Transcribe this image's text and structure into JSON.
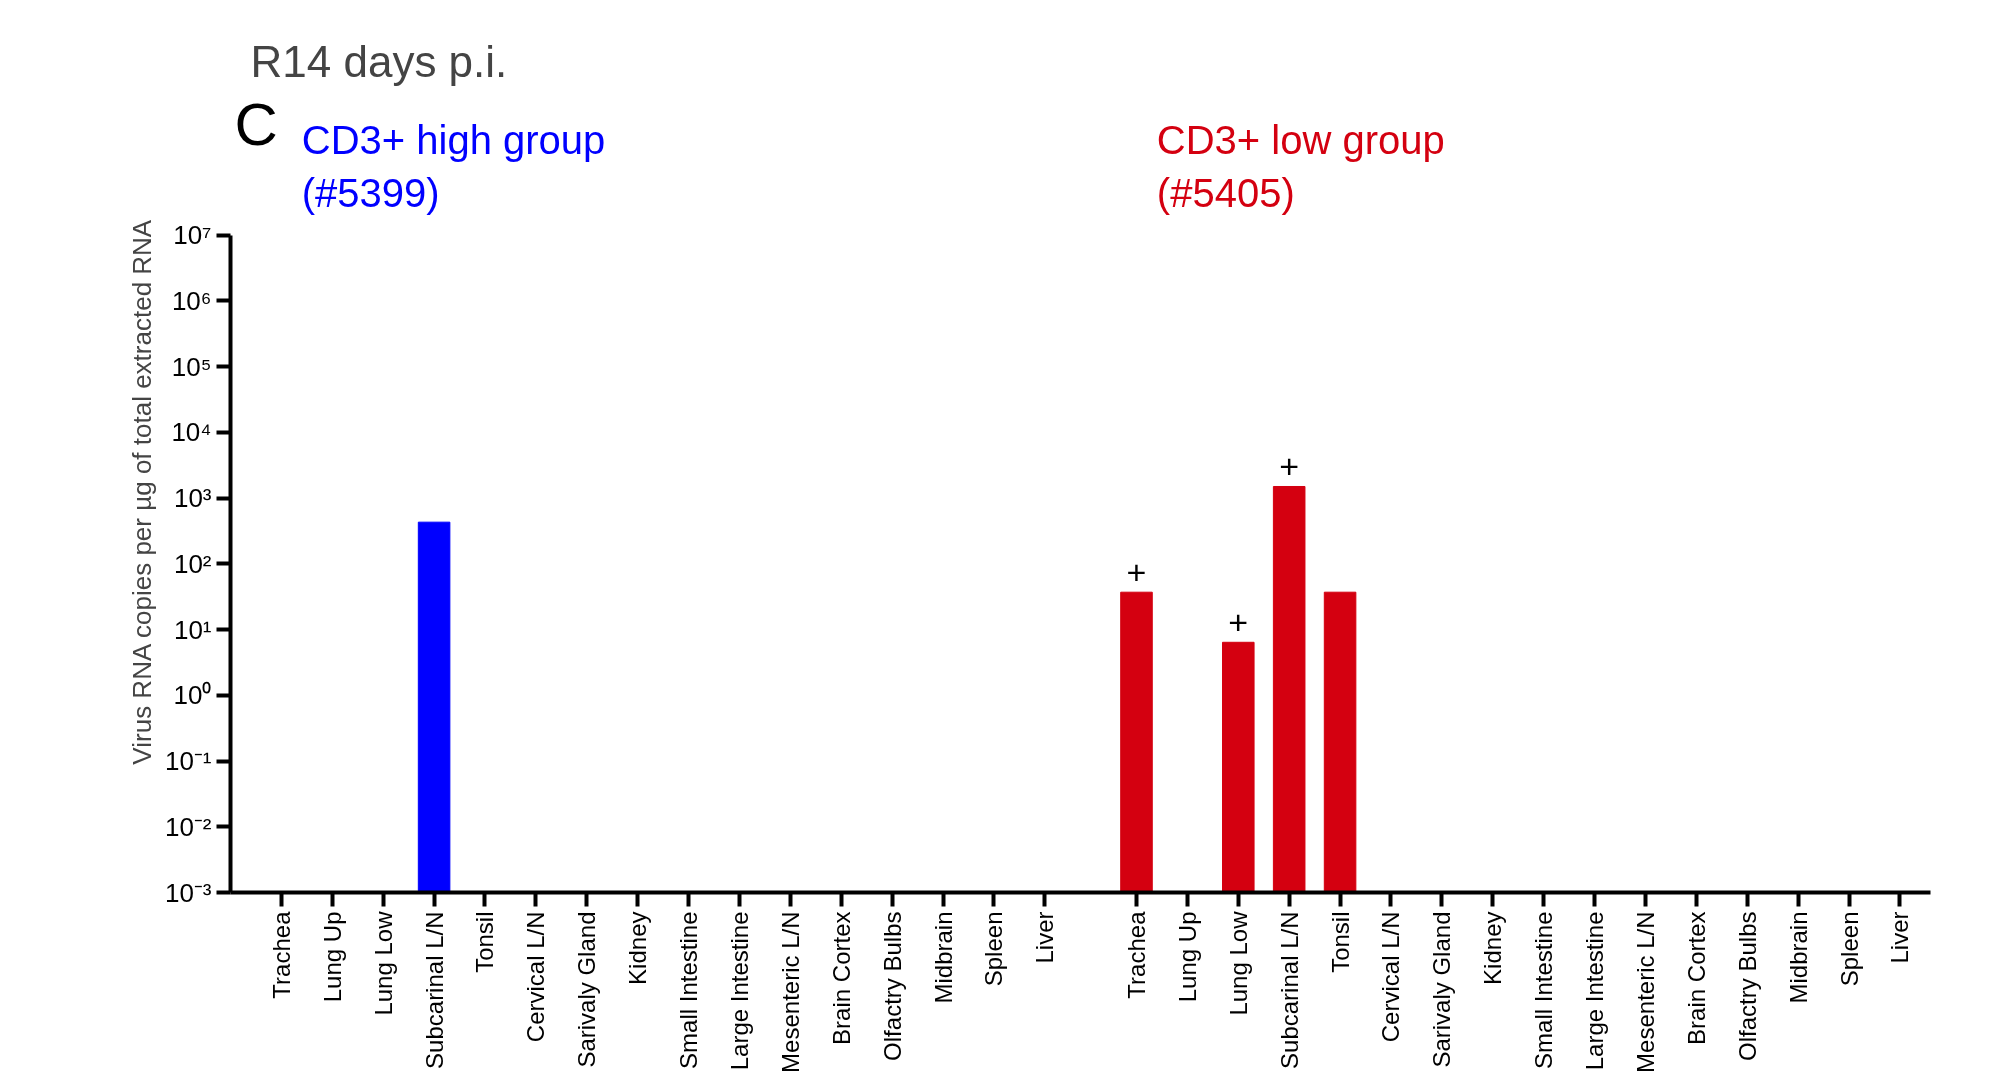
{
  "chart_data": {
    "type": "bar",
    "title": "R14 days p.i.",
    "ylabel": "Virus RNA copies per µg of total extracted RNA",
    "annotations": [
      "C"
    ],
    "categories": [
      "Trachea",
      "Lung Up",
      "Lung Low",
      "Subcarinal L/N",
      "Tonsil",
      "Cervical L/N",
      "Sarivaly Gland",
      "Kidney",
      "Small Intestine",
      "Large Intestine",
      "Mesenteric L/N",
      "Brain Cortex",
      "Olfactry Bulbs",
      "Midbrain",
      "Spleen",
      "Liver",
      "Trachea",
      "Lung Up",
      "Lung Low",
      "Subcarinal L/N",
      "Tonsil",
      "Cervical L/N",
      "Sarivaly Gland",
      "Kidney",
      "Small Intestine",
      "Large Intestine",
      "Mesenteric L/N",
      "Brain Cortex",
      "Olfactry Bulbs",
      "Midbrain",
      "Spleen",
      "Liver"
    ],
    "series": [
      {
        "name": "CD3+ high group\n(#5399)",
        "color": "#0000ff",
        "values": [
          null,
          null,
          null,
          430,
          null,
          null,
          null,
          null,
          null,
          null,
          null,
          null,
          null,
          null,
          null,
          null,
          null,
          null,
          null,
          null,
          null,
          null,
          null,
          null,
          null,
          null,
          null,
          null,
          null,
          null,
          null,
          null
        ]
      },
      {
        "name": "CD3+ low group\n(#5405)",
        "color": "#d40010",
        "values": [
          null,
          null,
          null,
          null,
          null,
          null,
          null,
          null,
          null,
          null,
          null,
          null,
          null,
          null,
          null,
          null,
          37,
          null,
          6.4,
          1500,
          37,
          null,
          null,
          null,
          null,
          null,
          null,
          null,
          null,
          null,
          null,
          null
        ],
        "value_labels": [
          null,
          null,
          null,
          null,
          null,
          null,
          null,
          null,
          null,
          null,
          null,
          null,
          null,
          null,
          null,
          null,
          "+",
          null,
          "+",
          "+",
          null,
          null,
          null,
          null,
          null,
          null,
          null,
          null,
          null,
          null,
          null,
          null
        ]
      }
    ],
    "log": true,
    "ylim": [
      0.001,
      10000000
    ],
    "yticks": [
      {
        "value": 0.001,
        "label": "10⁻³"
      },
      {
        "value": 0.01,
        "label": "10⁻²"
      },
      {
        "value": 0.1,
        "label": "10⁻¹"
      },
      {
        "value": 1,
        "label": "10⁰"
      },
      {
        "value": 10,
        "label": "10¹"
      },
      {
        "value": 100,
        "label": "10²"
      },
      {
        "value": 1000,
        "label": "10³"
      },
      {
        "value": 10000,
        "label": "10⁴"
      },
      {
        "value": 100000,
        "label": "10⁵"
      },
      {
        "value": 1000000,
        "label": "10⁶"
      },
      {
        "value": 10000000,
        "label": "10⁷"
      }
    ],
    "grid": false
  }
}
